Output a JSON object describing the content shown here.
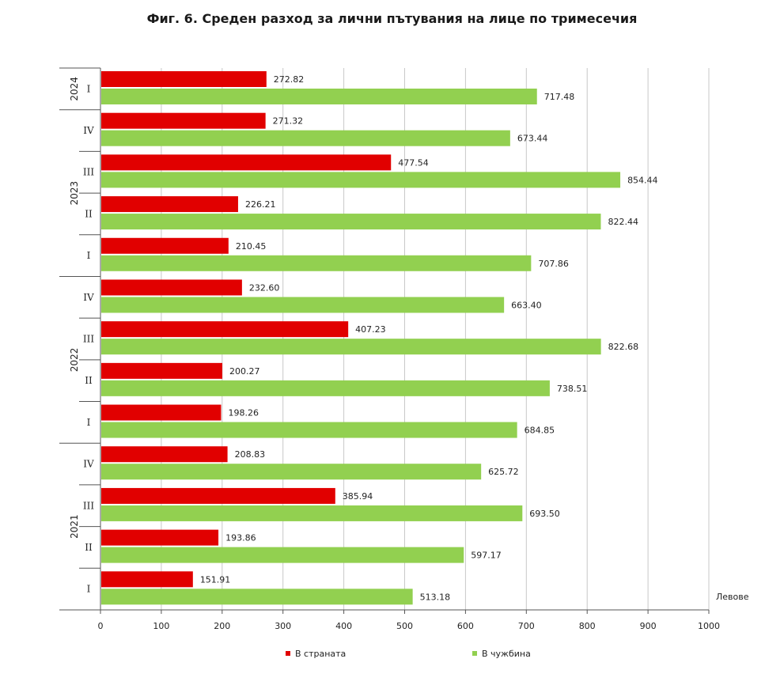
{
  "chart_data": {
    "type": "bar",
    "orientation": "horizontal",
    "title": "Фиг. 6. Среден разход за лични пътувания на лице по тримесечия",
    "unit_label": "Левове",
    "xlim": [
      0,
      1000
    ],
    "x_ticks": [
      "0",
      "100",
      "200",
      "300",
      "400",
      "500",
      "600",
      "700",
      "800",
      "900",
      "1000"
    ],
    "grid": true,
    "legend_position": "bottom",
    "colors": {
      "domestic": "#e10000",
      "abroad": "#92d050"
    },
    "groups": [
      {
        "year": "2024",
        "quarters": [
          "I"
        ]
      },
      {
        "year": "2023",
        "quarters": [
          "IV",
          "III",
          "II",
          "I"
        ]
      },
      {
        "year": "2022",
        "quarters": [
          "IV",
          "III",
          "II",
          "I"
        ]
      },
      {
        "year": "2021",
        "quarters": [
          "IV",
          "III",
          "II",
          "I"
        ]
      }
    ],
    "categories": [
      "2024 I",
      "2023 IV",
      "2023 III",
      "2023 II",
      "2023 I",
      "2022 IV",
      "2022 III",
      "2022 II",
      "2022 I",
      "2021 IV",
      "2021 III",
      "2021 II",
      "2021 I"
    ],
    "series": [
      {
        "name": "В страната",
        "values": [
          272.82,
          271.32,
          477.54,
          226.21,
          210.45,
          232.6,
          407.23,
          200.27,
          198.26,
          208.83,
          385.94,
          193.86,
          151.91
        ],
        "labels": [
          "272.82",
          "271.32",
          "477.54",
          "226.21",
          "210.45",
          "232.60",
          "407.23",
          "200.27",
          "198.26",
          "208.83",
          "385.94",
          "193.86",
          "151.91"
        ]
      },
      {
        "name": "В чужбина",
        "values": [
          717.48,
          673.44,
          854.44,
          822.44,
          707.86,
          663.4,
          822.68,
          738.51,
          684.85,
          625.72,
          693.5,
          597.17,
          513.18
        ],
        "labels": [
          "717.48",
          "673.44",
          "854.44",
          "822.44",
          "707.86",
          "663.40",
          "822.68",
          "738.51",
          "684.85",
          "625.72",
          "693.50",
          "597.17",
          "513.18"
        ]
      }
    ]
  }
}
